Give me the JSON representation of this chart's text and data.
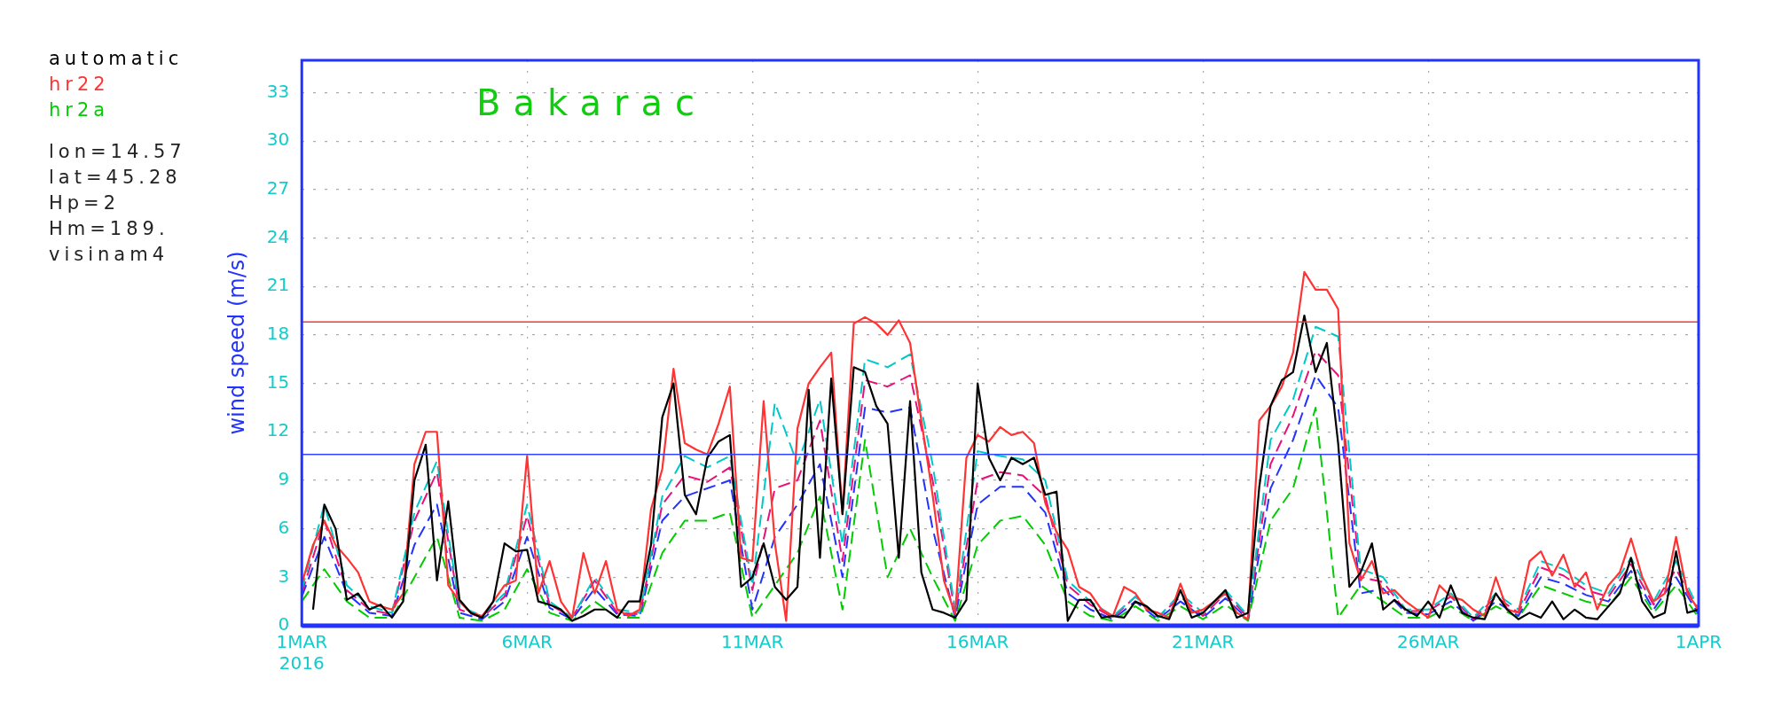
{
  "chart_data": {
    "type": "line",
    "title": "Bakarac",
    "ylabel": "wind speed (m/s)",
    "legend": "left",
    "grid": true,
    "marker": "none",
    "annotations": [
      "lon=14.57",
      "lat=45.28",
      "Hp=2",
      "Hm=189.",
      "visinam4"
    ],
    "xlim": [
      "2016-03-01",
      "2016-04-01"
    ],
    "xticks": [
      {
        "value": "2016-03-01",
        "label": "1MAR\n2016"
      },
      {
        "value": "2016-03-06",
        "label": "6MAR"
      },
      {
        "value": "2016-03-11",
        "label": "11MAR"
      },
      {
        "value": "2016-03-16",
        "label": "16MAR"
      },
      {
        "value": "2016-03-21",
        "label": "21MAR"
      },
      {
        "value": "2016-03-26",
        "label": "26MAR"
      },
      {
        "value": "2016-04-01",
        "label": "1APR"
      }
    ],
    "ylim": [
      0,
      35
    ],
    "yticks": [
      0,
      3,
      6,
      9,
      12,
      15,
      18,
      21,
      24,
      27,
      30,
      33
    ],
    "ref_lines": [
      {
        "axis": "y",
        "value": 18.8,
        "color": "#ff3333"
      },
      {
        "axis": "y",
        "value": 10.6,
        "color": "#3344ff"
      }
    ],
    "x": [
      "2016-03-01T00:00",
      "2016-03-01T06:00",
      "2016-03-01T12:00",
      "2016-03-01T18:00",
      "2016-03-02T00:00",
      "2016-03-02T06:00",
      "2016-03-02T12:00",
      "2016-03-02T18:00",
      "2016-03-03T00:00",
      "2016-03-03T06:00",
      "2016-03-03T12:00",
      "2016-03-03T18:00",
      "2016-03-04T00:00",
      "2016-03-04T06:00",
      "2016-03-04T12:00",
      "2016-03-04T18:00",
      "2016-03-05T00:00",
      "2016-03-05T06:00",
      "2016-03-05T12:00",
      "2016-03-05T18:00",
      "2016-03-06T00:00",
      "2016-03-06T06:00",
      "2016-03-06T12:00",
      "2016-03-06T18:00",
      "2016-03-07T00:00",
      "2016-03-07T06:00",
      "2016-03-07T12:00",
      "2016-03-07T18:00",
      "2016-03-08T00:00",
      "2016-03-08T06:00",
      "2016-03-08T12:00",
      "2016-03-08T18:00",
      "2016-03-09T00:00",
      "2016-03-09T06:00",
      "2016-03-09T12:00",
      "2016-03-09T18:00",
      "2016-03-10T00:00",
      "2016-03-10T06:00",
      "2016-03-10T12:00",
      "2016-03-10T18:00",
      "2016-03-11T00:00",
      "2016-03-11T06:00",
      "2016-03-11T12:00",
      "2016-03-11T18:00",
      "2016-03-12T00:00",
      "2016-03-12T06:00",
      "2016-03-12T12:00",
      "2016-03-12T18:00",
      "2016-03-13T00:00",
      "2016-03-13T06:00",
      "2016-03-13T12:00",
      "2016-03-13T18:00",
      "2016-03-14T00:00",
      "2016-03-14T06:00",
      "2016-03-14T12:00",
      "2016-03-14T18:00",
      "2016-03-15T00:00",
      "2016-03-15T06:00",
      "2016-03-15T12:00",
      "2016-03-15T18:00",
      "2016-03-16T00:00",
      "2016-03-16T06:00",
      "2016-03-16T12:00",
      "2016-03-16T18:00",
      "2016-03-17T00:00",
      "2016-03-17T06:00",
      "2016-03-17T12:00",
      "2016-03-17T18:00",
      "2016-03-18T00:00",
      "2016-03-18T06:00",
      "2016-03-18T12:00",
      "2016-03-18T18:00",
      "2016-03-19T00:00",
      "2016-03-19T06:00",
      "2016-03-19T12:00",
      "2016-03-19T18:00",
      "2016-03-20T00:00",
      "2016-03-20T06:00",
      "2016-03-20T12:00",
      "2016-03-20T18:00",
      "2016-03-21T00:00",
      "2016-03-21T06:00",
      "2016-03-21T12:00",
      "2016-03-21T18:00",
      "2016-03-22T00:00",
      "2016-03-22T06:00",
      "2016-03-22T12:00",
      "2016-03-22T18:00",
      "2016-03-23T00:00",
      "2016-03-23T06:00",
      "2016-03-23T12:00",
      "2016-03-23T18:00",
      "2016-03-24T00:00",
      "2016-03-24T06:00",
      "2016-03-24T12:00",
      "2016-03-24T18:00",
      "2016-03-25T00:00",
      "2016-03-25T06:00",
      "2016-03-25T12:00",
      "2016-03-25T18:00",
      "2016-03-26T00:00",
      "2016-03-26T06:00",
      "2016-03-26T12:00",
      "2016-03-26T18:00",
      "2016-03-27T00:00",
      "2016-03-27T06:00",
      "2016-03-27T12:00",
      "2016-03-27T18:00",
      "2016-03-28T00:00",
      "2016-03-28T06:00",
      "2016-03-28T12:00",
      "2016-03-28T18:00",
      "2016-03-29T00:00",
      "2016-03-29T06:00",
      "2016-03-29T12:00",
      "2016-03-29T18:00",
      "2016-03-30T00:00",
      "2016-03-30T06:00",
      "2016-03-30T12:00",
      "2016-03-30T18:00",
      "2016-03-31T00:00",
      "2016-03-31T06:00",
      "2016-03-31T12:00",
      "2016-03-31T18:00",
      "2016-04-01T00:00"
    ],
    "series": [
      {
        "name": "automatic",
        "color": "#000000",
        "line_style": "solid",
        "values": [
          null,
          1.0,
          7.5,
          6.0,
          1.6,
          2.0,
          1.0,
          1.3,
          0.5,
          1.5,
          9.0,
          11.2,
          2.8,
          7.7,
          1.6,
          0.8,
          0.5,
          1.5,
          5.1,
          4.6,
          4.7,
          1.5,
          1.3,
          1.0,
          0.3,
          0.6,
          1.0,
          1.0,
          0.5,
          1.5,
          1.5,
          5.0,
          12.9,
          15.0,
          8.1,
          6.9,
          10.4,
          11.4,
          11.8,
          2.4,
          3.0,
          5.1,
          2.4,
          1.6,
          2.4,
          14.6,
          4.2,
          15.3,
          6.9,
          16.0,
          15.7,
          13.6,
          12.5,
          4.2,
          13.9,
          3.3,
          1.0,
          0.8,
          0.5,
          1.6,
          15.0,
          10.4,
          9.0,
          10.4,
          10.0,
          10.4,
          8.1,
          8.3,
          0.3,
          1.6,
          1.6,
          0.5,
          0.6,
          0.5,
          1.5,
          1.2,
          0.6,
          0.4,
          2.2,
          0.5,
          0.8,
          1.5,
          2.2,
          0.5,
          0.8,
          8.6,
          13.6,
          15.2,
          15.7,
          19.2,
          15.7,
          17.5,
          11.3,
          2.4,
          3.3,
          5.1,
          1.0,
          1.6,
          1.0,
          0.6,
          1.5,
          0.5,
          2.5,
          0.8,
          0.5,
          0.4,
          2.0,
          1.0,
          0.4,
          0.8,
          0.5,
          1.5,
          0.4,
          1.0,
          0.5,
          0.4,
          1.2,
          2.0,
          4.2,
          1.5,
          0.5,
          0.8,
          4.6,
          0.8,
          1.0
        ]
      },
      {
        "name": "hr22",
        "color": "#ff3333",
        "line_style": "solid",
        "values": [
          2.6,
          5.0,
          6.5,
          5.0,
          4.2,
          3.3,
          1.5,
          1.2,
          1.0,
          2.0,
          10.0,
          12.0,
          12.0,
          2.5,
          1.5,
          0.8,
          0.6,
          1.5,
          2.5,
          2.8,
          10.5,
          2.0,
          4.0,
          1.5,
          0.5,
          4.5,
          2.0,
          4.0,
          1.0,
          0.6,
          1.0,
          7.2,
          9.7,
          15.9,
          11.3,
          10.9,
          10.6,
          12.5,
          14.8,
          4.2,
          4.0,
          13.9,
          5.1,
          0.3,
          12.2,
          15.0,
          16.0,
          16.9,
          6.9,
          18.7,
          19.1,
          18.7,
          18.0,
          18.9,
          17.5,
          12.7,
          8.1,
          2.8,
          0.7,
          10.4,
          11.8,
          11.4,
          12.3,
          11.8,
          12.0,
          11.3,
          7.6,
          5.8,
          4.7,
          2.4,
          2.0,
          1.0,
          0.6,
          2.4,
          2.0,
          1.0,
          0.8,
          0.5,
          2.6,
          0.8,
          1.0,
          1.5,
          2.0,
          0.8,
          0.4,
          12.7,
          13.6,
          14.8,
          16.9,
          21.9,
          20.8,
          20.8,
          19.6,
          5.1,
          2.8,
          4.0,
          2.0,
          2.2,
          1.5,
          1.0,
          0.5,
          2.5,
          1.8,
          1.6,
          1.0,
          0.6,
          3.0,
          1.0,
          0.8,
          4.0,
          4.6,
          3.1,
          4.4,
          2.4,
          3.3,
          1.0,
          2.5,
          3.3,
          5.4,
          3.0,
          1.5,
          2.0,
          5.5,
          2.0,
          1.0
        ]
      },
      {
        "color": "#00c8c8",
        "line_style": "dashed",
        "x": [
          "2016-03-01T00:00",
          "2016-03-01T12:00",
          "2016-03-02T00:00",
          "2016-03-02T12:00",
          "2016-03-03T00:00",
          "2016-03-03T12:00",
          "2016-03-04T00:00",
          "2016-03-04T12:00",
          "2016-03-05T00:00",
          "2016-03-05T12:00",
          "2016-03-06T00:00",
          "2016-03-06T12:00",
          "2016-03-07T00:00",
          "2016-03-07T12:00",
          "2016-03-08T00:00",
          "2016-03-08T12:00",
          "2016-03-09T00:00",
          "2016-03-09T12:00",
          "2016-03-10T00:00",
          "2016-03-10T12:00",
          "2016-03-11T00:00",
          "2016-03-11T12:00",
          "2016-03-12T00:00",
          "2016-03-12T12:00",
          "2016-03-13T00:00",
          "2016-03-13T12:00",
          "2016-03-14T00:00",
          "2016-03-14T12:00",
          "2016-03-15T00:00",
          "2016-03-15T12:00",
          "2016-03-16T00:00",
          "2016-03-16T12:00",
          "2016-03-17T00:00",
          "2016-03-17T12:00",
          "2016-03-18T00:00",
          "2016-03-18T12:00",
          "2016-03-19T00:00",
          "2016-03-19T12:00",
          "2016-03-20T00:00",
          "2016-03-20T12:00",
          "2016-03-21T00:00",
          "2016-03-21T12:00",
          "2016-03-22T00:00",
          "2016-03-22T12:00",
          "2016-03-23T00:00",
          "2016-03-23T12:00",
          "2016-03-24T00:00",
          "2016-03-24T12:00",
          "2016-03-25T00:00",
          "2016-03-25T12:00",
          "2016-03-26T00:00",
          "2016-03-26T12:00",
          "2016-03-27T00:00",
          "2016-03-27T12:00",
          "2016-03-28T00:00",
          "2016-03-28T12:00",
          "2016-03-29T00:00",
          "2016-03-29T12:00",
          "2016-03-30T00:00",
          "2016-03-30T12:00",
          "2016-03-31T00:00",
          "2016-03-31T12:00",
          "2016-04-01T00:00"
        ],
        "values": [
          2.2,
          7.5,
          2.5,
          1.2,
          0.8,
          7.0,
          10.2,
          1.2,
          0.6,
          2.0,
          7.5,
          1.5,
          0.5,
          3.0,
          1.0,
          0.8,
          8.0,
          10.5,
          9.8,
          10.5,
          2.5,
          13.8,
          10.0,
          14.0,
          5.0,
          16.5,
          16.0,
          16.8,
          10.0,
          1.0,
          10.8,
          10.5,
          10.3,
          9.0,
          2.8,
          1.5,
          0.6,
          1.8,
          0.5,
          2.0,
          0.8,
          2.2,
          0.6,
          11.5,
          14.0,
          18.5,
          17.9,
          3.5,
          3.0,
          1.0,
          1.0,
          2.0,
          0.5,
          2.0,
          1.0,
          4.0,
          3.5,
          2.5,
          2.0,
          4.2,
          1.5,
          4.0,
          1.0
        ]
      },
      {
        "color": "#e8107a",
        "line_style": "dashed",
        "x": [
          "2016-03-01T00:00",
          "2016-03-01T12:00",
          "2016-03-02T00:00",
          "2016-03-02T12:00",
          "2016-03-03T00:00",
          "2016-03-03T12:00",
          "2016-03-04T00:00",
          "2016-03-04T12:00",
          "2016-03-05T00:00",
          "2016-03-05T12:00",
          "2016-03-06T00:00",
          "2016-03-06T12:00",
          "2016-03-07T00:00",
          "2016-03-07T12:00",
          "2016-03-08T00:00",
          "2016-03-08T12:00",
          "2016-03-09T00:00",
          "2016-03-09T12:00",
          "2016-03-10T00:00",
          "2016-03-10T12:00",
          "2016-03-11T00:00",
          "2016-03-11T12:00",
          "2016-03-12T00:00",
          "2016-03-12T12:00",
          "2016-03-13T00:00",
          "2016-03-13T12:00",
          "2016-03-14T00:00",
          "2016-03-14T12:00",
          "2016-03-15T00:00",
          "2016-03-15T12:00",
          "2016-03-16T00:00",
          "2016-03-16T12:00",
          "2016-03-17T00:00",
          "2016-03-17T12:00",
          "2016-03-18T00:00",
          "2016-03-18T12:00",
          "2016-03-19T00:00",
          "2016-03-19T12:00",
          "2016-03-20T00:00",
          "2016-03-20T12:00",
          "2016-03-21T00:00",
          "2016-03-21T12:00",
          "2016-03-22T00:00",
          "2016-03-22T12:00",
          "2016-03-23T00:00",
          "2016-03-23T12:00",
          "2016-03-24T00:00",
          "2016-03-24T12:00",
          "2016-03-25T00:00",
          "2016-03-25T12:00",
          "2016-03-26T00:00",
          "2016-03-26T12:00",
          "2016-03-27T00:00",
          "2016-03-27T12:00",
          "2016-03-28T00:00",
          "2016-03-28T12:00",
          "2016-03-29T00:00",
          "2016-03-29T12:00",
          "2016-03-30T00:00",
          "2016-03-30T12:00",
          "2016-03-31T00:00",
          "2016-03-31T12:00",
          "2016-04-01T00:00"
        ],
        "values": [
          2.0,
          6.5,
          2.2,
          1.0,
          0.7,
          6.5,
          9.5,
          1.0,
          0.5,
          1.8,
          6.8,
          1.3,
          0.5,
          2.8,
          0.8,
          0.7,
          7.5,
          9.3,
          8.9,
          9.8,
          2.2,
          8.5,
          9.0,
          12.7,
          4.0,
          15.2,
          14.8,
          15.5,
          9.0,
          0.8,
          9.0,
          9.5,
          9.3,
          8.0,
          2.5,
          1.3,
          0.5,
          1.8,
          0.5,
          1.8,
          0.6,
          2.0,
          0.5,
          10.0,
          13.0,
          17.0,
          15.5,
          3.0,
          2.7,
          0.9,
          0.9,
          1.8,
          0.4,
          1.8,
          0.8,
          3.6,
          3.1,
          2.2,
          1.8,
          3.8,
          1.3,
          3.5,
          0.9
        ]
      },
      {
        "color": "#2233ff",
        "line_style": "dashed",
        "x": [
          "2016-03-01T00:00",
          "2016-03-01T12:00",
          "2016-03-02T00:00",
          "2016-03-02T12:00",
          "2016-03-03T00:00",
          "2016-03-03T12:00",
          "2016-03-04T00:00",
          "2016-03-04T12:00",
          "2016-03-05T00:00",
          "2016-03-05T12:00",
          "2016-03-06T00:00",
          "2016-03-06T12:00",
          "2016-03-07T00:00",
          "2016-03-07T12:00",
          "2016-03-08T00:00",
          "2016-03-08T12:00",
          "2016-03-09T00:00",
          "2016-03-09T12:00",
          "2016-03-10T00:00",
          "2016-03-10T12:00",
          "2016-03-11T00:00",
          "2016-03-11T12:00",
          "2016-03-12T00:00",
          "2016-03-12T12:00",
          "2016-03-13T00:00",
          "2016-03-13T12:00",
          "2016-03-14T00:00",
          "2016-03-14T12:00",
          "2016-03-15T00:00",
          "2016-03-15T12:00",
          "2016-03-16T00:00",
          "2016-03-16T12:00",
          "2016-03-17T00:00",
          "2016-03-17T12:00",
          "2016-03-18T00:00",
          "2016-03-18T12:00",
          "2016-03-19T00:00",
          "2016-03-19T12:00",
          "2016-03-20T00:00",
          "2016-03-20T12:00",
          "2016-03-21T00:00",
          "2016-03-21T12:00",
          "2016-03-22T00:00",
          "2016-03-22T12:00",
          "2016-03-23T00:00",
          "2016-03-23T12:00",
          "2016-03-24T00:00",
          "2016-03-24T12:00",
          "2016-03-25T00:00",
          "2016-03-25T12:00",
          "2016-03-26T00:00",
          "2016-03-26T12:00",
          "2016-03-27T00:00",
          "2016-03-27T12:00",
          "2016-03-28T00:00",
          "2016-03-28T12:00",
          "2016-03-29T00:00",
          "2016-03-29T12:00",
          "2016-03-30T00:00",
          "2016-03-30T12:00",
          "2016-03-31T00:00",
          "2016-03-31T12:00",
          "2016-04-01T00:00"
        ],
        "values": [
          1.8,
          5.5,
          2.0,
          0.8,
          0.6,
          5.0,
          7.5,
          0.8,
          0.4,
          1.5,
          5.5,
          1.1,
          0.4,
          2.3,
          0.7,
          0.6,
          6.5,
          8.0,
          8.5,
          9.0,
          1.0,
          5.5,
          7.5,
          10.0,
          3.0,
          13.5,
          13.2,
          13.5,
          6.0,
          0.5,
          7.5,
          8.6,
          8.6,
          7.0,
          2.0,
          1.0,
          0.4,
          1.5,
          0.4,
          1.5,
          0.5,
          1.7,
          0.4,
          8.5,
          11.5,
          15.5,
          13.5,
          2.0,
          2.3,
          0.8,
          0.7,
          1.5,
          0.3,
          1.5,
          0.6,
          3.0,
          2.6,
          1.9,
          1.5,
          3.4,
          1.0,
          3.0,
          0.7
        ]
      },
      {
        "name": "hr2a",
        "color": "#00cc00",
        "line_style": "dashed",
        "x": [
          "2016-03-01T00:00",
          "2016-03-01T12:00",
          "2016-03-02T00:00",
          "2016-03-02T12:00",
          "2016-03-03T00:00",
          "2016-03-03T12:00",
          "2016-03-04T00:00",
          "2016-03-04T12:00",
          "2016-03-05T00:00",
          "2016-03-05T12:00",
          "2016-03-06T00:00",
          "2016-03-06T12:00",
          "2016-03-07T00:00",
          "2016-03-07T12:00",
          "2016-03-08T00:00",
          "2016-03-08T12:00",
          "2016-03-09T00:00",
          "2016-03-09T12:00",
          "2016-03-10T00:00",
          "2016-03-10T12:00",
          "2016-03-11T00:00",
          "2016-03-11T12:00",
          "2016-03-12T00:00",
          "2016-03-12T12:00",
          "2016-03-13T00:00",
          "2016-03-13T12:00",
          "2016-03-14T00:00",
          "2016-03-14T12:00",
          "2016-03-15T00:00",
          "2016-03-15T12:00",
          "2016-03-16T00:00",
          "2016-03-16T12:00",
          "2016-03-17T00:00",
          "2016-03-17T12:00",
          "2016-03-18T00:00",
          "2016-03-18T12:00",
          "2016-03-19T00:00",
          "2016-03-19T12:00",
          "2016-03-20T00:00",
          "2016-03-20T12:00",
          "2016-03-21T00:00",
          "2016-03-21T12:00",
          "2016-03-22T00:00",
          "2016-03-22T12:00",
          "2016-03-23T00:00",
          "2016-03-23T12:00",
          "2016-03-24T00:00",
          "2016-03-24T12:00",
          "2016-03-25T00:00",
          "2016-03-25T12:00",
          "2016-03-26T00:00",
          "2016-03-26T12:00",
          "2016-03-27T00:00",
          "2016-03-27T12:00",
          "2016-03-28T00:00",
          "2016-03-28T12:00",
          "2016-03-29T00:00",
          "2016-03-29T12:00",
          "2016-03-30T00:00",
          "2016-03-30T12:00",
          "2016-03-31T00:00",
          "2016-03-31T12:00",
          "2016-04-01T00:00"
        ],
        "values": [
          1.5,
          3.5,
          1.5,
          0.5,
          0.5,
          3.0,
          5.5,
          0.5,
          0.3,
          1.0,
          3.5,
          0.8,
          0.3,
          1.5,
          0.5,
          0.5,
          4.5,
          6.5,
          6.5,
          7.0,
          0.5,
          2.5,
          4.5,
          8.0,
          1.0,
          11.5,
          3.0,
          6.0,
          3.0,
          0.3,
          5.0,
          6.5,
          6.8,
          5.0,
          1.5,
          0.6,
          0.3,
          1.2,
          0.3,
          1.2,
          0.4,
          1.3,
          0.3,
          6.5,
          8.5,
          13.5,
          0.5,
          2.5,
          1.5,
          0.5,
          0.5,
          1.2,
          0.3,
          1.2,
          0.5,
          2.5,
          2.0,
          1.5,
          1.2,
          3.0,
          0.8,
          2.5,
          0.5
        ]
      }
    ]
  }
}
